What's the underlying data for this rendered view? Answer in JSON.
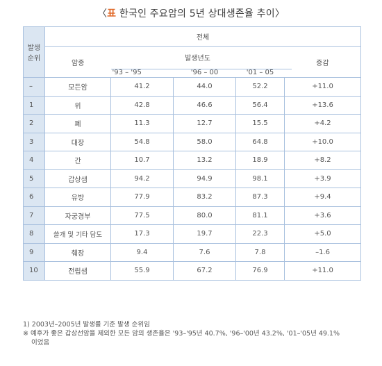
{
  "title": {
    "mark": "표",
    "text": "한국인 주요암의 5년 상대생존율 추이",
    "open": "〈",
    "close": "〉"
  },
  "header": {
    "rank_label_line1": "발생",
    "rank_label_line2": "순위",
    "cancer_label": "암종",
    "total_label": "전체",
    "year_group_label": "발생년도",
    "change_label": "증감",
    "periods": [
      "'93 – '95",
      "'96 – 00",
      "'01 – 05"
    ]
  },
  "rows": [
    {
      "rank": "–",
      "cancer": "모든암",
      "v1": "41.2",
      "v2": "44.0",
      "v3": "52.2",
      "change": "+11.0"
    },
    {
      "rank": "1",
      "cancer": "위",
      "v1": "42.8",
      "v2": "46.6",
      "v3": "56.4",
      "change": "+13.6"
    },
    {
      "rank": "2",
      "cancer": "폐",
      "v1": "11.3",
      "v2": "12.7",
      "v3": "15.5",
      "change": "+4.2"
    },
    {
      "rank": "3",
      "cancer": "대장",
      "v1": "54.8",
      "v2": "58.0",
      "v3": "64.8",
      "change": "+10.0"
    },
    {
      "rank": "4",
      "cancer": "간",
      "v1": "10.7",
      "v2": "13.2",
      "v3": "18.9",
      "change": "+8.2"
    },
    {
      "rank": "5",
      "cancer": "갑상샘",
      "v1": "94.2",
      "v2": "94.9",
      "v3": "98.1",
      "change": "+3.9"
    },
    {
      "rank": "6",
      "cancer": "유방",
      "v1": "77.9",
      "v2": "83.2",
      "v3": "87.3",
      "change": "+9.4"
    },
    {
      "rank": "7",
      "cancer": "자궁경부",
      "v1": "77.5",
      "v2": "80.0",
      "v3": "81.1",
      "change": "+3.6"
    },
    {
      "rank": "8",
      "cancer": "쓸개 및 기타 담도",
      "v1": "17.3",
      "v2": "19.7",
      "v3": "22.3",
      "change": "+5.0"
    },
    {
      "rank": "9",
      "cancer": "췌장",
      "v1": "9.4",
      "v2": "7.6",
      "v3": "7.8",
      "change": "–1.6"
    },
    {
      "rank": "10",
      "cancer": "전립샘",
      "v1": "55.9",
      "v2": "67.2",
      "v3": "76.9",
      "change": "+11.0"
    }
  ],
  "notes": [
    "1) 2003년–2005년 발생률 기준 발생 순위임",
    "※ 예후가 좋은 갑상선암을 제외한 모든 암의 생존율은 '93–'95년 40.7%, '96–'00년 43.2%, '01–'05년 49.1%",
    "이었음"
  ]
}
